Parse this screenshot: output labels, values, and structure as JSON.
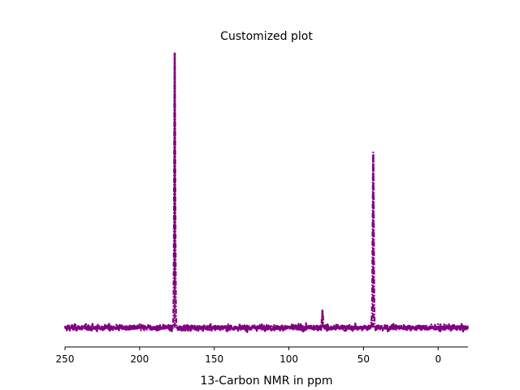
{
  "chart_data": {
    "type": "line",
    "title": "Customized plot",
    "xlabel": "13-Carbon NMR in ppm",
    "ylabel": "",
    "xlim": [
      250,
      -20
    ],
    "x_reversed": true,
    "x_ticks": [
      250,
      200,
      150,
      100,
      50,
      0
    ],
    "x_tick_labels": [
      "250",
      "200",
      "150",
      "100",
      "50",
      "0"
    ],
    "y_axis_visible": false,
    "ylim": [
      -0.07,
      1.02
    ],
    "grid": false,
    "line_style": "dash-dot",
    "series": [
      {
        "name": "",
        "color": "#800080",
        "baseline_noise": 0.012,
        "peaks": [
          {
            "x": 176.5,
            "height": 1.0
          },
          {
            "x": 43.5,
            "height": 0.64
          },
          {
            "x": 77.5,
            "height": 0.06
          },
          {
            "x": 44.5,
            "height": 0.03
          }
        ]
      }
    ]
  }
}
